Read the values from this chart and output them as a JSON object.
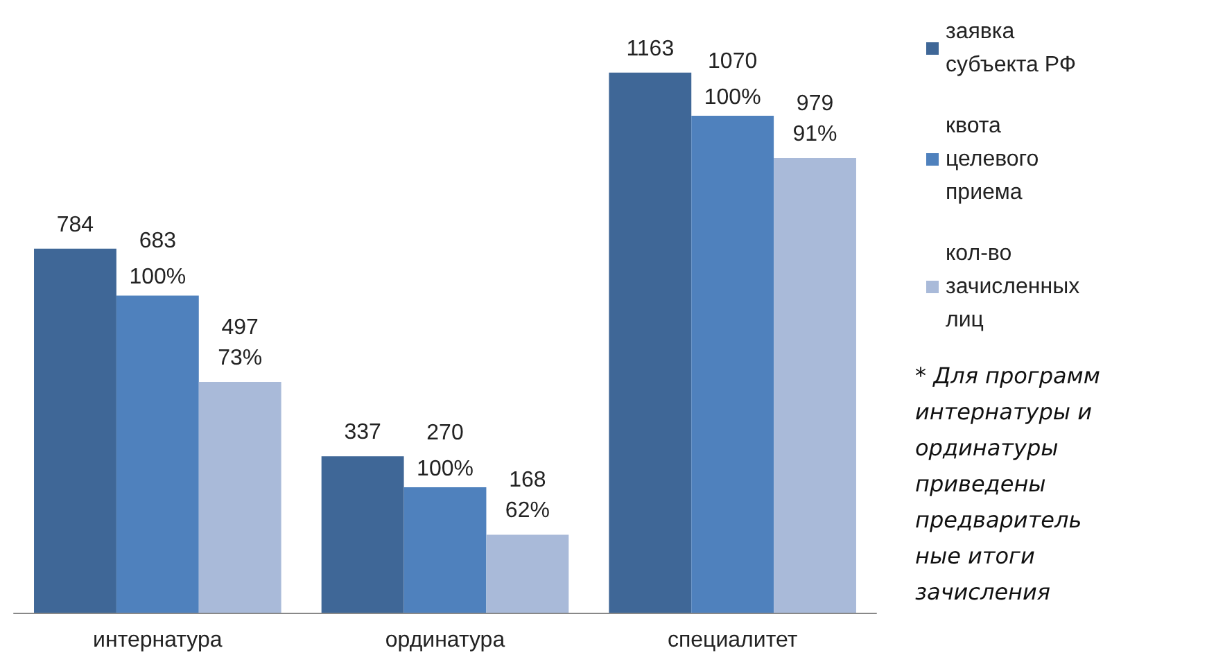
{
  "chart_data": {
    "type": "bar",
    "categories": [
      "интернатура",
      "ординатура",
      "специалитет"
    ],
    "series": [
      {
        "name": "заявка субъекта РФ",
        "color": "#3f6797",
        "values": [
          784,
          337,
          1163
        ],
        "value_labels": [
          "784",
          "337",
          "1163"
        ]
      },
      {
        "name": "квота целевого приема",
        "color": "#4f81bd",
        "values": [
          683,
          270,
          1070
        ],
        "value_labels": [
          "683",
          "270",
          "1070"
        ]
      },
      {
        "name": "кол-во зачисленных лиц",
        "color": "#a9bad9",
        "values": [
          497,
          168,
          979
        ],
        "value_labels": [
          "497\n73%",
          "168\n62%",
          "979\n91%"
        ]
      }
    ],
    "grid": false,
    "legend": "right",
    "annotations": [
      {
        "text": "100%",
        "x": "интернатура",
        "y": 683
      },
      {
        "text": "100%",
        "x": "ординатура",
        "y": 270
      },
      {
        "text": "100%",
        "x": "специалитет",
        "y": 1070
      },
      "* Для программ интернатуры и ординатуры приведены предварительные итоги зачисления"
    ]
  }
}
